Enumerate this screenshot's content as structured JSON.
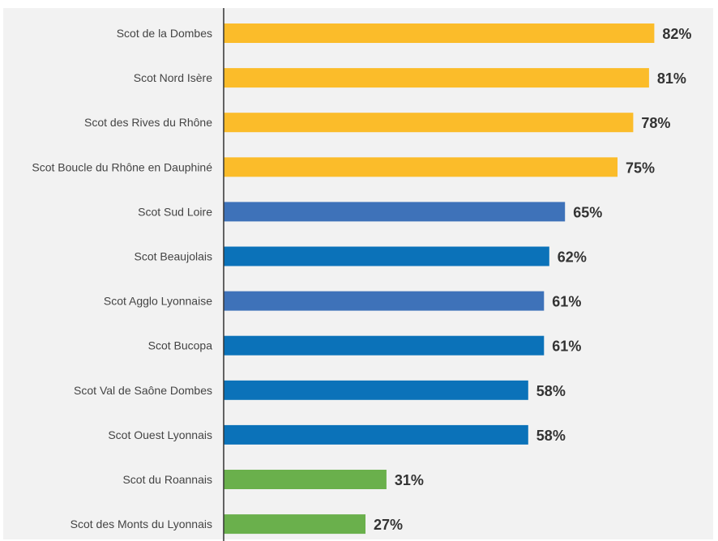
{
  "chart_data": {
    "type": "bar",
    "orientation": "horizontal",
    "title": "",
    "xlabel": "",
    "ylabel": "",
    "xlim": [
      0,
      100
    ],
    "grid": false,
    "legend": "none",
    "value_suffix": "%",
    "categories": [
      "Scot de la Dombes",
      "Scot Nord Isère",
      "Scot des Rives du Rhône",
      "Scot Boucle du Rhône en Dauphiné",
      "Scot Sud Loire",
      "Scot Beaujolais",
      "Scot Agglo Lyonnaise",
      "Scot Bucopa",
      "Scot Val de Saône Dombes",
      "Scot Ouest Lyonnais",
      "Scot du Roannais",
      "Scot des Monts du Lyonnais"
    ],
    "values": [
      82,
      81,
      78,
      75,
      65,
      62,
      61,
      61,
      58,
      58,
      31,
      27
    ],
    "value_labels": [
      "82%",
      "81%",
      "78%",
      "75%",
      "65%",
      "62%",
      "61%",
      "61%",
      "58%",
      "58%",
      "31%",
      "27%"
    ],
    "bar_colors": [
      "#fbbc2a",
      "#fbbc2a",
      "#fbbc2a",
      "#fbbc2a",
      "#3e72b9",
      "#0b72b9",
      "#3e72b9",
      "#0b72b9",
      "#0b72b9",
      "#0b72b9",
      "#6ab04c",
      "#6ab04c"
    ]
  }
}
